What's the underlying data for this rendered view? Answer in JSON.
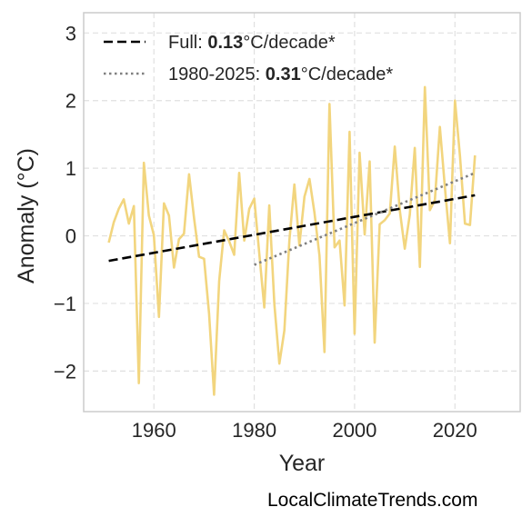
{
  "chart_data": {
    "type": "line",
    "title": "",
    "xlabel": "Year",
    "ylabel": "Anomaly (°C)",
    "xlim": [
      1946,
      2033
    ],
    "ylim": [
      -2.6,
      3.3
    ],
    "x_ticks": [
      1960,
      1980,
      2000,
      2020
    ],
    "y_ticks": [
      3,
      2,
      1,
      0,
      -1,
      -2
    ],
    "y_tick_labels": [
      "3",
      "2",
      "1",
      "0",
      "−1",
      "−2"
    ],
    "grid": true,
    "legend_position": "top-left",
    "series": [
      {
        "color": "#f2d57e",
        "x": [
          1951,
          1952,
          1953,
          1954,
          1955,
          1956,
          1957,
          1958,
          1959,
          1960,
          1961,
          1962,
          1963,
          1964,
          1965,
          1966,
          1967,
          1968,
          1969,
          1970,
          1971,
          1972,
          1973,
          1974,
          1975,
          1976,
          1977,
          1978,
          1979,
          1980,
          1981,
          1982,
          1983,
          1984,
          1985,
          1986,
          1987,
          1988,
          1989,
          1990,
          1991,
          1992,
          1993,
          1994,
          1995,
          1996,
          1997,
          1998,
          1999,
          2000,
          2001,
          2002,
          2003,
          2004,
          2005,
          2006,
          2007,
          2008,
          2009,
          2010,
          2011,
          2012,
          2013,
          2014,
          2015,
          2016,
          2017,
          2018,
          2019,
          2020,
          2021,
          2022,
          2023,
          2024
        ],
        "y": [
          -0.1,
          0.2,
          0.4,
          0.54,
          0.18,
          0.44,
          -2.18,
          1.08,
          0.3,
          0.01,
          -1.2,
          0.48,
          0.3,
          -0.47,
          -0.05,
          0.03,
          0.91,
          0.26,
          -0.31,
          -0.34,
          -1.15,
          -2.35,
          -0.67,
          0.08,
          -0.08,
          -0.28,
          0.93,
          -0.07,
          0.4,
          0.55,
          -0.26,
          -1.06,
          0.45,
          -1.01,
          -1.89,
          -1.4,
          -0.07,
          0.76,
          -0.14,
          0.58,
          0.84,
          0.34,
          -0.29,
          -1.72,
          1.95,
          -0.17,
          -0.07,
          -1.03,
          1.54,
          -1.45,
          1.23,
          0.02,
          1.1,
          -1.58,
          0.17,
          0.23,
          0.33,
          1.32,
          0.38,
          -0.19,
          0.31,
          1.3,
          -0.46,
          2.2,
          0.38,
          0.53,
          1.61,
          0.72,
          -0.11,
          2.0,
          1.18,
          0.18,
          0.16,
          1.19
        ]
      },
      {
        "name": "Full: 0.13°C/decade*",
        "style": "dashed",
        "color": "#000000",
        "x": [
          1951,
          2024
        ],
        "y": [
          -0.37,
          0.6
        ]
      },
      {
        "name": "1980-2025: 0.31°C/decade*",
        "style": "dotted",
        "color": "#808080",
        "x": [
          1980,
          2024
        ],
        "y": [
          -0.43,
          0.93
        ]
      }
    ],
    "legend": [
      {
        "prefix": "Full: ",
        "bold": "0.13",
        "suffix": "°C/decade*"
      },
      {
        "prefix": "1980-2025: ",
        "bold": "0.31",
        "suffix": "°C/decade*"
      }
    ]
  },
  "watermark": "LocalClimateTrends.com"
}
